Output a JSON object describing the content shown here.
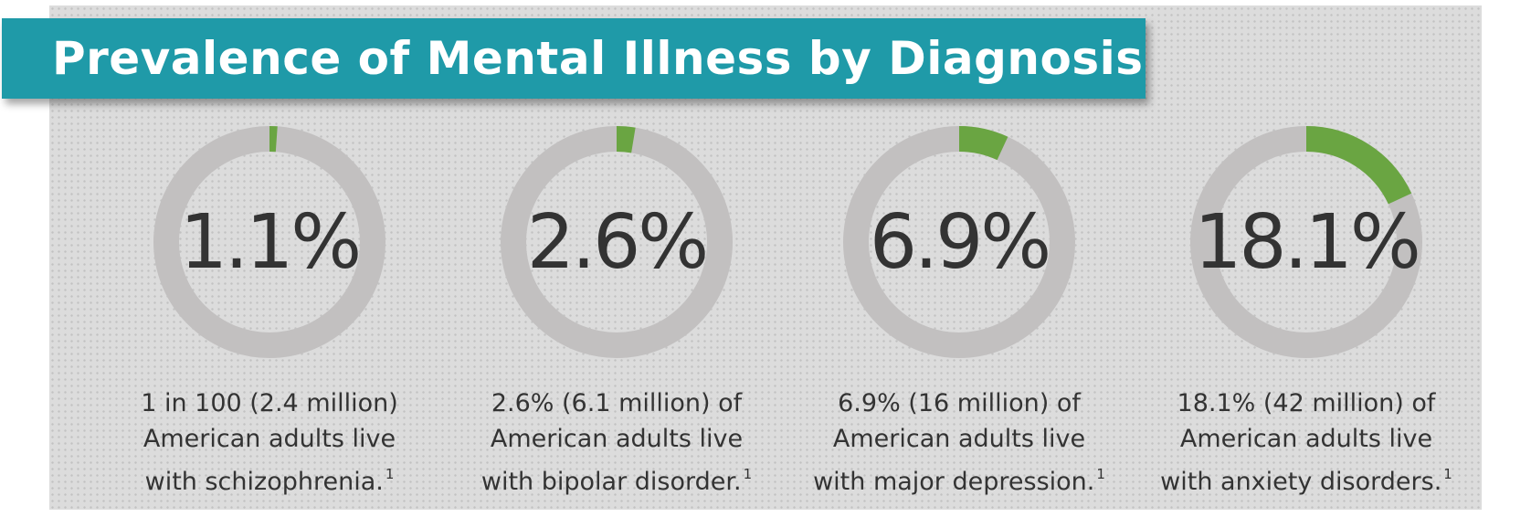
{
  "title": "Prevalence of Mental Illness by Diagnosis",
  "colors": {
    "banner": "#1f9aa8",
    "ring": "#c2c0c0",
    "fill": "#6aa542",
    "text": "#333333"
  },
  "chart_data": {
    "type": "pie",
    "title": "Prevalence of Mental Illness by Diagnosis",
    "series": [
      {
        "value": 1.1,
        "label": "1.1%",
        "caption": [
          "1 in 100 (2.4 million)",
          "American adults live",
          "with schizophrenia."
        ],
        "footnote": "1"
      },
      {
        "value": 2.6,
        "label": "2.6%",
        "caption": [
          "2.6% (6.1 million) of",
          "American adults live",
          "with bipolar disorder."
        ],
        "footnote": "1"
      },
      {
        "value": 6.9,
        "label": "6.9%",
        "caption": [
          "6.9% (16 million) of",
          "American adults live",
          "with major depression."
        ],
        "footnote": "1"
      },
      {
        "value": 18.1,
        "label": "18.1%",
        "caption": [
          "18.1% (42 million) of",
          "American adults live",
          "with anxiety disorders."
        ],
        "footnote": "1"
      }
    ]
  }
}
